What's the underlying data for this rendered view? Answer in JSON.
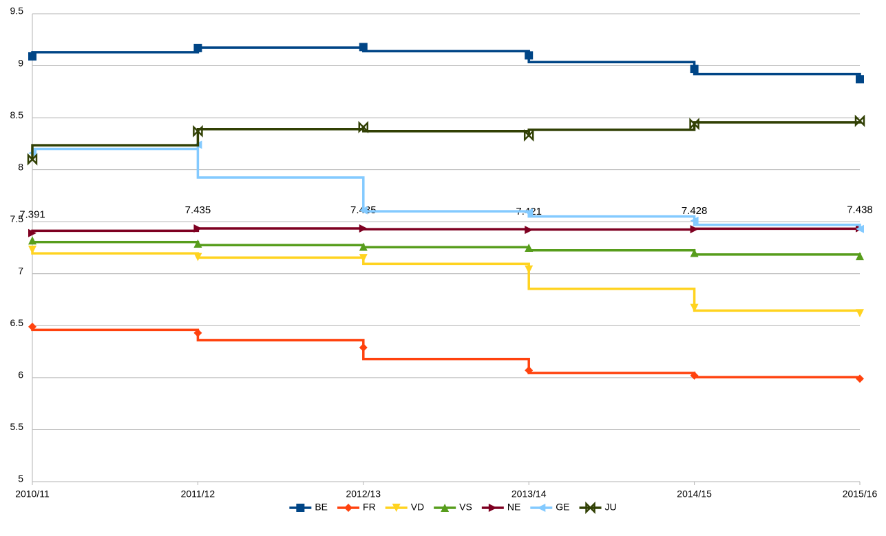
{
  "chart_data": {
    "type": "line",
    "step": true,
    "categories": [
      "2010/11",
      "2011/12",
      "2012/13",
      "2013/14",
      "2014/15",
      "2015/16"
    ],
    "ylim": [
      5,
      9.5
    ],
    "yticks": [
      5,
      5.5,
      6,
      6.5,
      7,
      7.5,
      8,
      8.5,
      9,
      9.5
    ],
    "grid": true,
    "legend": "bottom",
    "series": [
      {
        "name": "BE",
        "color": "#004586",
        "marker": "square",
        "values": [
          9.09,
          9.17,
          9.18,
          9.1,
          8.97,
          8.87
        ]
      },
      {
        "name": "FR",
        "color": "#ff420e",
        "marker": "diamond",
        "values": [
          6.49,
          6.43,
          6.29,
          6.07,
          6.02,
          5.99
        ]
      },
      {
        "name": "VD",
        "color": "#ffd320",
        "marker": "triangle-down",
        "values": [
          7.23,
          7.16,
          7.15,
          7.04,
          6.67,
          6.62
        ]
      },
      {
        "name": "VS",
        "color": "#579d1c",
        "marker": "triangle-up",
        "values": [
          7.32,
          7.29,
          7.26,
          7.25,
          7.2,
          7.17
        ]
      },
      {
        "name": "NE",
        "color": "#7e0021",
        "marker": "triangle-right",
        "show_values": true,
        "values": [
          7.391,
          7.435,
          7.435,
          7.421,
          7.428,
          7.438
        ]
      },
      {
        "name": "GE",
        "color": "#83caff",
        "marker": "triangle-left",
        "values": [
          8.16,
          8.24,
          7.61,
          7.59,
          7.51,
          7.43
        ]
      },
      {
        "name": "JU",
        "color": "#314004",
        "marker": "bowtie",
        "values": [
          8.1,
          8.37,
          8.41,
          8.33,
          8.44,
          8.47
        ]
      }
    ]
  }
}
